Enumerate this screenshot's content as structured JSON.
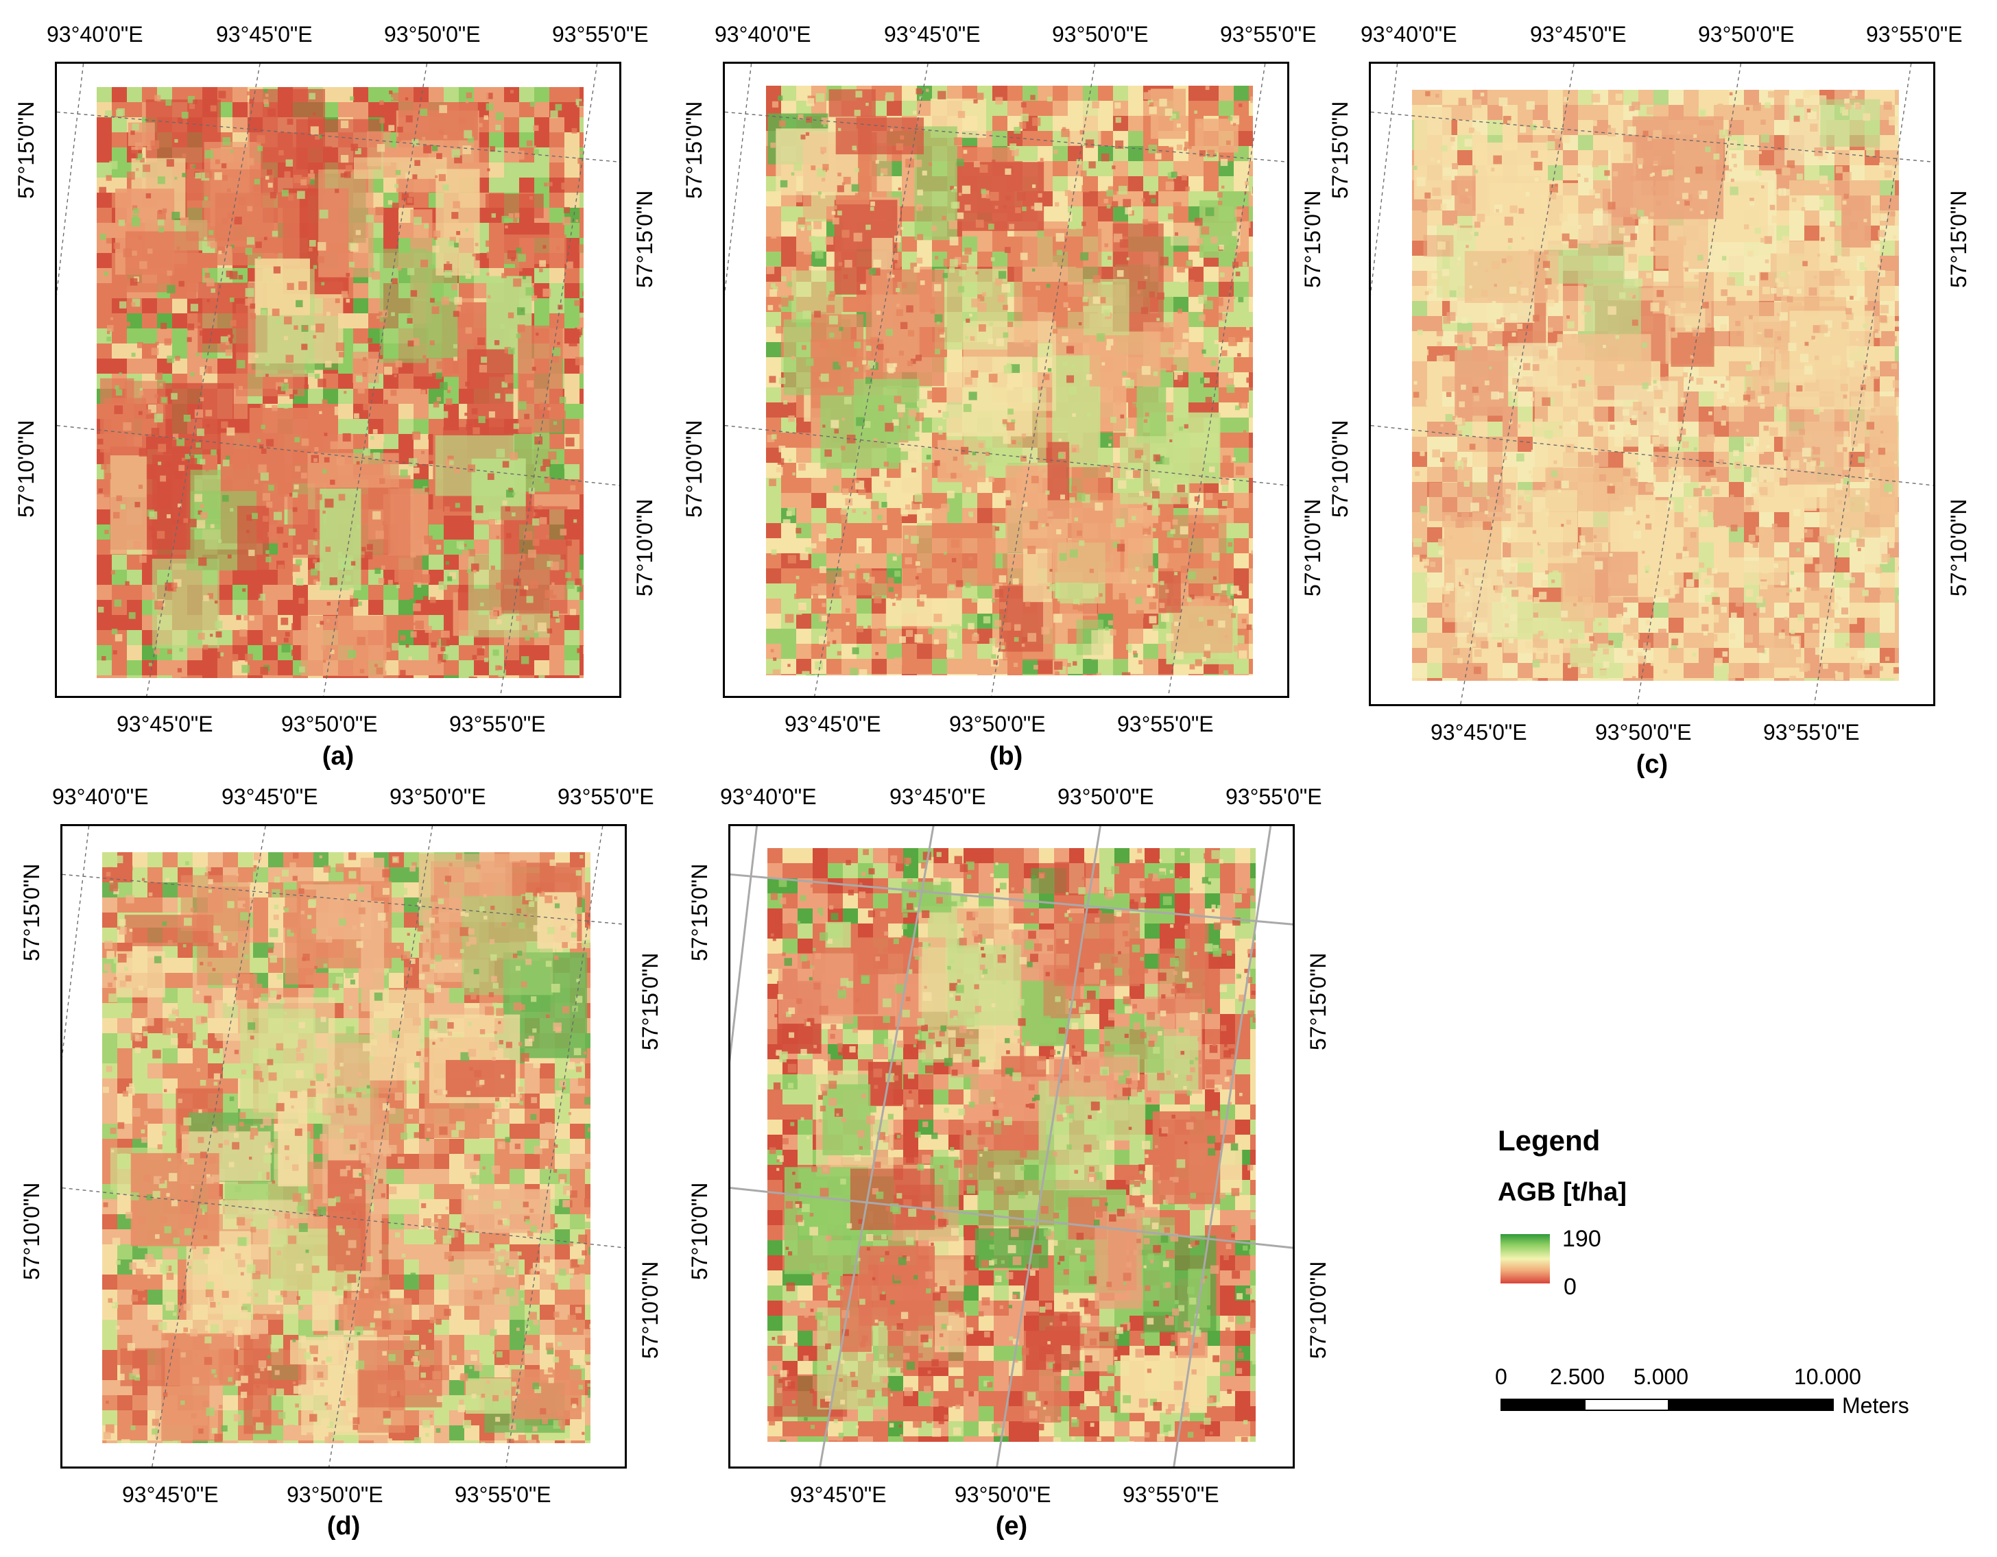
{
  "panels": [
    {
      "id": "a",
      "label": "(a)",
      "top_lon": [
        "93°40'0\"E",
        "93°45'0\"E",
        "93°50'0\"E",
        "93°55'0\"E"
      ],
      "bottom_lon": [
        "93°45'0\"E",
        "93°50'0\"E",
        "93°55'0\"E"
      ],
      "left_lat": [
        "57°15'0\"N",
        "57°10'0\"N"
      ],
      "right_lat": [
        "57°15'0\"N",
        "57°10'0\"N"
      ],
      "style": "a"
    },
    {
      "id": "b",
      "label": "(b)",
      "top_lon": [
        "93°40'0\"E",
        "93°45'0\"E",
        "93°50'0\"E",
        "93°55'0\"E"
      ],
      "bottom_lon": [
        "93°45'0\"E",
        "93°50'0\"E",
        "93°55'0\"E"
      ],
      "left_lat": [
        "57°15'0\"N",
        "57°10'0\"N"
      ],
      "right_lat": [
        "57°15'0\"N",
        "57°10'0\"N"
      ],
      "style": "b"
    },
    {
      "id": "c",
      "label": "(c)",
      "top_lon": [
        "93°40'0\"E",
        "93°45'0\"E",
        "93°50'0\"E",
        "93°55'0\"E"
      ],
      "bottom_lon": [
        "93°45'0\"E",
        "93°50'0\"E",
        "93°55'0\"E"
      ],
      "left_lat": [
        "57°15'0\"N",
        "57°10'0\"N"
      ],
      "right_lat": [
        "57°15'0\"N",
        "57°10'0\"N"
      ],
      "style": "c"
    },
    {
      "id": "d",
      "label": "(d)",
      "top_lon": [
        "93°40'0\"E",
        "93°45'0\"E",
        "93°50'0\"E",
        "93°55'0\"E"
      ],
      "bottom_lon": [
        "93°45'0\"E",
        "93°50'0\"E",
        "93°55'0\"E"
      ],
      "left_lat": [
        "57°15'0\"N",
        "57°10'0\"N"
      ],
      "right_lat": [
        "57°15'0\"N",
        "57°10'0\"N"
      ],
      "style": "d"
    },
    {
      "id": "e",
      "label": "(e)",
      "top_lon": [
        "93°40'0\"E",
        "93°45'0\"E",
        "93°50'0\"E",
        "93°55'0\"E"
      ],
      "bottom_lon": [
        "93°45'0\"E",
        "93°50'0\"E",
        "93°55'0\"E"
      ],
      "left_lat": [
        "57°15'0\"N",
        "57°10'0\"N"
      ],
      "right_lat": [
        "57°15'0\"N",
        "57°10'0\"N"
      ],
      "style": "e"
    }
  ],
  "legend": {
    "title": "Legend",
    "variable": "AGB [t/ha]",
    "max": "190",
    "min": "0",
    "colors": [
      "#2f9a3a",
      "#8fcf62",
      "#f3f3b0",
      "#f1a978",
      "#d8433a"
    ]
  },
  "scale": {
    "ticks": [
      "0",
      "2.500",
      "5.000",
      "10.000"
    ],
    "unit": "Meters"
  }
}
